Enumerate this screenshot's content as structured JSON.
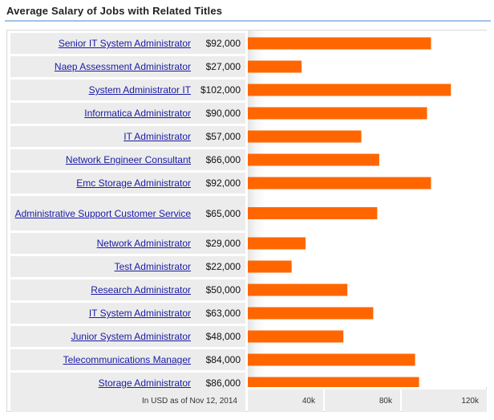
{
  "title": "Average Salary of Jobs with Related Titles",
  "footer_note": "In USD as of Nov 12, 2014",
  "colors": {
    "bar": "#ff6600",
    "link": "#1a1aa6",
    "cell": "#ececec",
    "title_rule": "#9ec3e8"
  },
  "chart_data": {
    "type": "bar",
    "orientation": "horizontal",
    "title": "Average Salary of Jobs with Related Titles",
    "categories": [
      "Senior IT System Administrator",
      "Naep Assessment Administrator",
      "System Administrator IT",
      "Informatica Administrator",
      "IT Administrator",
      "Network Engineer Consultant",
      "Emc Storage Administrator",
      "Administrative Support Customer Service",
      "Network Administrator",
      "Test Administrator",
      "Research Administrator",
      "IT System Administrator",
      "Junior System Administrator",
      "Telecommunications Manager",
      "Storage Administrator"
    ],
    "value_labels": [
      "$92,000",
      "$27,000",
      "$102,000",
      "$90,000",
      "$57,000",
      "$66,000",
      "$92,000",
      "$65,000",
      "$29,000",
      "$22,000",
      "$50,000",
      "$63,000",
      "$48,000",
      "$84,000",
      "$86,000"
    ],
    "values": [
      92000,
      27000,
      102000,
      90000,
      57000,
      66000,
      92000,
      65000,
      29000,
      22000,
      50000,
      63000,
      48000,
      84000,
      86000
    ],
    "xlim": [
      0,
      120000
    ],
    "xticks": [
      40000,
      80000,
      120000
    ],
    "xtick_labels": [
      "40k",
      "80k",
      "120k"
    ],
    "grid": false,
    "legend": "none"
  }
}
